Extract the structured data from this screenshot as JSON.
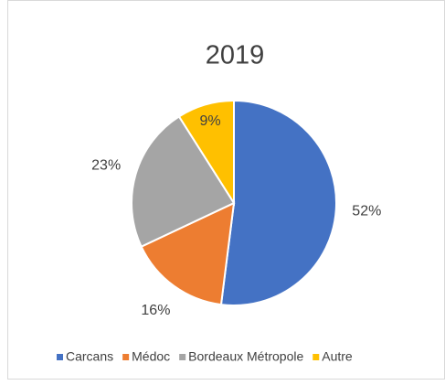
{
  "chart_data": {
    "type": "pie",
    "title": "2019",
    "categories": [
      "Carcans",
      "Médoc",
      "Bordeaux Métropole",
      "Autre"
    ],
    "values": [
      52,
      16,
      23,
      9
    ],
    "value_labels": [
      "52%",
      "16%",
      "23%",
      "9%"
    ],
    "colors": [
      "#4472c4",
      "#ed7d31",
      "#a5a5a5",
      "#ffc000"
    ],
    "legend": "bottom"
  }
}
